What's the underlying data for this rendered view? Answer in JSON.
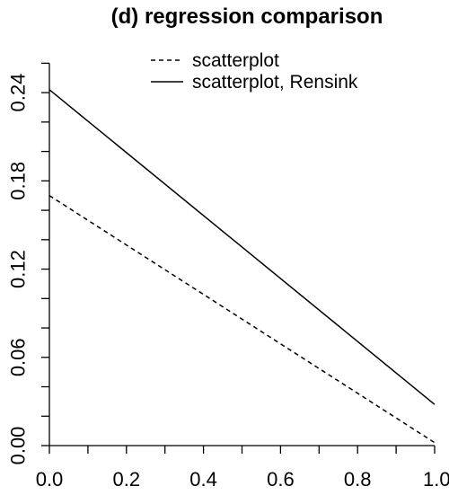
{
  "chart_data": {
    "type": "line",
    "title": "(d) regression comparison",
    "xlabel": "",
    "ylabel": "",
    "xlim": [
      0,
      1
    ],
    "ylim": [
      0,
      0.27
    ],
    "x_ticks": [
      0,
      0.1,
      0.2,
      0.3,
      0.4,
      0.5,
      0.6,
      0.7,
      0.8,
      0.9,
      1.0
    ],
    "x_tick_labels": [
      "0.0",
      "",
      "0.2",
      "",
      "0.4",
      "",
      "0.6",
      "",
      "0.8",
      "",
      "1.0"
    ],
    "y_ticks": [
      0,
      0.02,
      0.04,
      0.06,
      0.08,
      0.1,
      0.12,
      0.14,
      0.16,
      0.18,
      0.2,
      0.22,
      0.24,
      0.26
    ],
    "y_tick_labels": [
      "0.00",
      "",
      "",
      "0.06",
      "",
      "",
      "0.12",
      "",
      "",
      "0.18",
      "",
      "",
      "0.24",
      ""
    ],
    "grid": false,
    "legend": "top-center",
    "series": [
      {
        "name": "scatterplot",
        "style": "dashed",
        "color": "#000000",
        "x": [
          0,
          1
        ],
        "y": [
          0.17,
          0.002
        ]
      },
      {
        "name": "scatterplot, Rensink",
        "style": "solid",
        "color": "#000000",
        "x": [
          0,
          1
        ],
        "y": [
          0.242,
          0.028
        ]
      }
    ]
  }
}
